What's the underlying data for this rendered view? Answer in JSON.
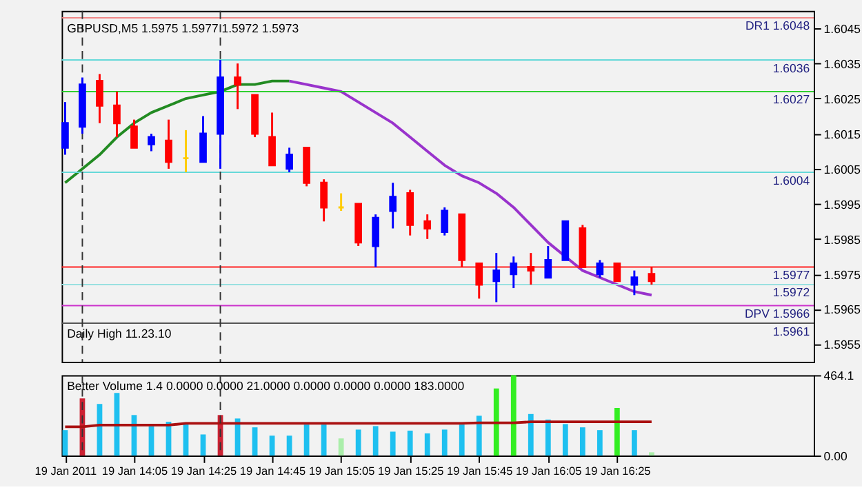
{
  "chart_data": [
    {
      "type": "candlestick",
      "title": "GBPUSD,M5  1.5975 1.5977 1.5972 1.5973",
      "x": [
        "2011-01-19T13:45",
        "2011-01-19T13:50",
        "2011-01-19T13:55",
        "2011-01-19T14:00",
        "2011-01-19T14:05",
        "2011-01-19T14:10",
        "2011-01-19T14:15",
        "2011-01-19T14:20",
        "2011-01-19T14:25",
        "2011-01-19T14:30",
        "2011-01-19T14:35",
        "2011-01-19T14:40",
        "2011-01-19T14:45",
        "2011-01-19T14:50",
        "2011-01-19T14:55",
        "2011-01-19T15:00",
        "2011-01-19T15:05",
        "2011-01-19T15:10",
        "2011-01-19T15:15",
        "2011-01-19T15:20",
        "2011-01-19T15:25",
        "2011-01-19T15:30",
        "2011-01-19T15:35",
        "2011-01-19T15:40",
        "2011-01-19T15:45",
        "2011-01-19T15:50",
        "2011-01-19T15:55",
        "2011-01-19T16:00",
        "2011-01-19T16:05",
        "2011-01-19T16:10",
        "2011-01-19T16:15",
        "2011-01-19T16:20",
        "2011-01-19T16:25",
        "2011-01-19T16:30",
        "2011-01-19T16:35"
      ],
      "ohlc": [
        [
          1.6011,
          1.6024,
          1.6009,
          1.6018
        ],
        [
          1.6017,
          1.6031,
          1.6015,
          1.6029
        ],
        [
          1.603,
          1.6032,
          1.6018,
          1.6023
        ],
        [
          1.6023,
          1.6027,
          1.6014,
          1.6018
        ],
        [
          1.6017,
          1.6019,
          1.6011,
          1.6011
        ],
        [
          1.6012,
          1.6015,
          1.601,
          1.6014
        ],
        [
          1.6013,
          1.6019,
          1.6005,
          1.6007
        ],
        [
          1.6008,
          1.6016,
          1.6004,
          1.6008
        ],
        [
          1.6007,
          1.602,
          1.6007,
          1.6015
        ],
        [
          1.6015,
          1.6036,
          1.6005,
          1.6031
        ],
        [
          1.6031,
          1.6035,
          1.6022,
          1.6029
        ],
        [
          1.6026,
          1.6026,
          1.6014,
          1.6015
        ],
        [
          1.6014,
          1.6021,
          1.6006,
          1.6006
        ],
        [
          1.6005,
          1.6011,
          1.6004,
          1.6009
        ],
        [
          1.6011,
          1.6011,
          1.6,
          1.6001
        ],
        [
          1.6001,
          1.6002,
          1.599,
          1.5994
        ],
        [
          1.5994,
          1.5998,
          1.5993,
          1.5994
        ],
        [
          1.5995,
          1.5995,
          1.5983,
          1.5984
        ],
        [
          1.5983,
          1.5992,
          1.5977,
          1.5991
        ],
        [
          1.5993,
          1.6001,
          1.5988,
          1.5997
        ],
        [
          1.5998,
          1.5999,
          1.5986,
          1.5989
        ],
        [
          1.599,
          1.5992,
          1.5985,
          1.5988
        ],
        [
          1.5987,
          1.5994,
          1.5986,
          1.5993
        ],
        [
          1.5992,
          1.5992,
          1.5977,
          1.5979
        ],
        [
          1.5978,
          1.5978,
          1.5968,
          1.5972
        ],
        [
          1.5973,
          1.5981,
          1.5967,
          1.5976
        ],
        [
          1.5975,
          1.598,
          1.5971,
          1.5978
        ],
        [
          1.5977,
          1.5981,
          1.5972,
          1.5976
        ],
        [
          1.5974,
          1.5983,
          1.5974,
          1.5979
        ],
        [
          1.5979,
          1.599,
          1.5979,
          1.599
        ],
        [
          1.5988,
          1.5989,
          1.5977,
          1.5977
        ],
        [
          1.5975,
          1.5979,
          1.5974,
          1.5978
        ],
        [
          1.5978,
          1.5978,
          1.5973,
          1.5973
        ],
        [
          1.5972,
          1.5976,
          1.5969,
          1.5974
        ],
        [
          1.5975,
          1.5977,
          1.5972,
          1.5973
        ]
      ],
      "colors": [
        "#0000ff",
        "#0000ff",
        "#ff0000",
        "#ff0000",
        "#ff0000",
        "#0000ff",
        "#ff0000",
        "#ffcc00",
        "#0000ff",
        "#0000ff",
        "#ff0000",
        "#ff0000",
        "#ff0000",
        "#0000ff",
        "#ff0000",
        "#ff0000",
        "#ffcc00",
        "#ff0000",
        "#0000ff",
        "#0000ff",
        "#ff0000",
        "#ff0000",
        "#0000ff",
        "#ff0000",
        "#ff0000",
        "#0000ff",
        "#0000ff",
        "#ff0000",
        "#0000ff",
        "#0000ff",
        "#ff0000",
        "#0000ff",
        "#ff0000",
        "#0000ff",
        "#ff0000"
      ],
      "series": [
        {
          "type": "line",
          "color": "#228b22",
          "values": [
            1.6001,
            1.6005,
            1.6009,
            1.6014,
            1.6018,
            1.6021,
            1.6023,
            1.6025,
            1.6026,
            1.6027,
            1.6029,
            1.6029,
            1.603,
            1.603,
            null,
            null,
            null,
            null,
            null,
            null,
            null,
            null,
            null,
            null,
            null,
            null,
            null,
            null,
            null,
            null,
            null,
            null,
            null,
            null,
            null
          ]
        },
        {
          "type": "line",
          "color": "#9933cc",
          "values": [
            null,
            null,
            null,
            null,
            null,
            null,
            null,
            null,
            null,
            null,
            null,
            null,
            null,
            1.603,
            1.6029,
            1.6028,
            1.6027,
            1.6024,
            1.6021,
            1.6018,
            1.6014,
            1.601,
            1.6006,
            1.6003,
            1.6001,
            1.5998,
            1.5994,
            1.5989,
            1.5984,
            1.598,
            1.5976,
            1.5974,
            1.5972,
            1.597,
            1.5969
          ]
        }
      ],
      "ylim": [
        1.595,
        1.605
      ],
      "yticks": [
        1.6045,
        1.6035,
        1.6025,
        1.6015,
        1.6005,
        1.5995,
        1.5985,
        1.5975,
        1.5965,
        1.5955
      ],
      "xlim": [
        "2011-01-19T13:44",
        "2011-01-19T17:22"
      ],
      "tick_labels": "y",
      "grid": false,
      "ref_lines": [
        {
          "axis": "y",
          "value": 1.6048,
          "label": "DR1  1.6048",
          "color": "#f08080"
        },
        {
          "axis": "y",
          "value": 1.6036,
          "label": "1.6036",
          "color": "#66d9d9"
        },
        {
          "axis": "y",
          "value": 1.6027,
          "label": "1.6027",
          "color": "#22cc22"
        },
        {
          "axis": "y",
          "value": 1.6004,
          "label": "1.6004",
          "color": "#66d9d9"
        },
        {
          "axis": "y",
          "value": 1.5977,
          "label": "1.5977",
          "color": "#ff2222"
        },
        {
          "axis": "y",
          "value": 1.5972,
          "label": "1.5972",
          "color": "#99e0e0"
        },
        {
          "axis": "y",
          "value": 1.5966,
          "label": "DPV  1.5966",
          "color": "#cc33cc"
        },
        {
          "axis": "y",
          "value": 1.5961,
          "label": "1.5961",
          "color": "#555555"
        },
        {
          "axis": "x",
          "value": "2011-01-19T13:50",
          "color": "#333333",
          "line_style": "dashed"
        },
        {
          "axis": "x",
          "value": "2011-01-19T14:30",
          "color": "#333333",
          "line_style": "dashed"
        }
      ],
      "annotations": [
        "Daily High 11.23.10"
      ]
    },
    {
      "type": "bar",
      "title": "Better Volume 1.4 0.0000 0.0000 21.0000 0.0000 0.0000 0.0000 183.0000",
      "x": [
        "2011-01-19T13:45",
        "2011-01-19T13:50",
        "2011-01-19T13:55",
        "2011-01-19T14:00",
        "2011-01-19T14:05",
        "2011-01-19T14:10",
        "2011-01-19T14:15",
        "2011-01-19T14:20",
        "2011-01-19T14:25",
        "2011-01-19T14:30",
        "2011-01-19T14:35",
        "2011-01-19T14:40",
        "2011-01-19T14:45",
        "2011-01-19T14:50",
        "2011-01-19T14:55",
        "2011-01-19T15:00",
        "2011-01-19T15:05",
        "2011-01-19T15:10",
        "2011-01-19T15:15",
        "2011-01-19T15:20",
        "2011-01-19T15:25",
        "2011-01-19T15:30",
        "2011-01-19T15:35",
        "2011-01-19T15:40",
        "2011-01-19T15:45",
        "2011-01-19T15:50",
        "2011-01-19T15:55",
        "2011-01-19T16:00",
        "2011-01-19T16:05",
        "2011-01-19T16:10",
        "2011-01-19T16:15",
        "2011-01-19T16:20",
        "2011-01-19T16:25",
        "2011-01-19T16:30",
        "2011-01-19T16:35"
      ],
      "series": [
        {
          "type": "bar",
          "values": [
            147,
            330,
            298,
            362,
            234,
            170,
            195,
            186,
            122,
            234,
            214,
            163,
            115,
            115,
            179,
            179,
            99,
            150,
            170,
            138,
            144,
            128,
            150,
            179,
            230,
            387,
            464.1,
            240,
            208,
            182,
            163,
            147,
            275,
            147,
            19
          ],
          "colors": [
            "#1ec0f0",
            "#cc2233",
            "#1ec0f0",
            "#1ec0f0",
            "#1ec0f0",
            "#1ec0f0",
            "#1ec0f0",
            "#1ec0f0",
            "#1ec0f0",
            "#cc2233",
            "#1ec0f0",
            "#1ec0f0",
            "#1ec0f0",
            "#1ec0f0",
            "#1ec0f0",
            "#1ec0f0",
            "#aaeeaa",
            "#1ec0f0",
            "#1ec0f0",
            "#1ec0f0",
            "#1ec0f0",
            "#1ec0f0",
            "#1ec0f0",
            "#1ec0f0",
            "#1ec0f0",
            "#33ee22",
            "#33ee22",
            "#1ec0f0",
            "#1ec0f0",
            "#1ec0f0",
            "#1ec0f0",
            "#1ec0f0",
            "#33ee22",
            "#1ec0f0",
            "#aaeeaa"
          ]
        },
        {
          "type": "line",
          "color": "#aa1111",
          "values": [
            166,
            166,
            176,
            176,
            176,
            176,
            176,
            186,
            186,
            186,
            186,
            186,
            186,
            186,
            186,
            186,
            186,
            186,
            186,
            186,
            186,
            186,
            186,
            186,
            189,
            189,
            189,
            195,
            195,
            195,
            195,
            195,
            195,
            195,
            195
          ]
        }
      ],
      "ylim": [
        0,
        464.1
      ],
      "yticks": [
        {
          "value": 0,
          "label": "0.00"
        },
        464.1
      ],
      "xlim": [
        "2011-01-19T13:44",
        "2011-01-19T17:22"
      ],
      "grid": false,
      "xticks": [
        {
          "value": "2011-01-19T13:45",
          "label": "19 Jan 2011"
        },
        {
          "value": "2011-01-19T14:05",
          "label": "19 Jan 14:05"
        },
        {
          "value": "2011-01-19T14:25",
          "label": "19 Jan 14:25"
        },
        {
          "value": "2011-01-19T14:45",
          "label": "19 Jan 14:45"
        },
        {
          "value": "2011-01-19T15:05",
          "label": "19 Jan 15:05"
        },
        {
          "value": "2011-01-19T15:25",
          "label": "19 Jan 15:25"
        },
        {
          "value": "2011-01-19T15:45",
          "label": "19 Jan 15:45"
        },
        {
          "value": "2011-01-19T16:05",
          "label": "19 Jan 16:05"
        },
        {
          "value": "2011-01-19T16:25",
          "label": "19 Jan 16:25"
        }
      ],
      "ref_lines": [
        {
          "axis": "x",
          "value": "2011-01-19T13:50",
          "color": "#333333",
          "line_style": "dashed"
        },
        {
          "axis": "x",
          "value": "2011-01-19T14:30",
          "color": "#333333",
          "line_style": "dashed"
        }
      ]
    }
  ]
}
